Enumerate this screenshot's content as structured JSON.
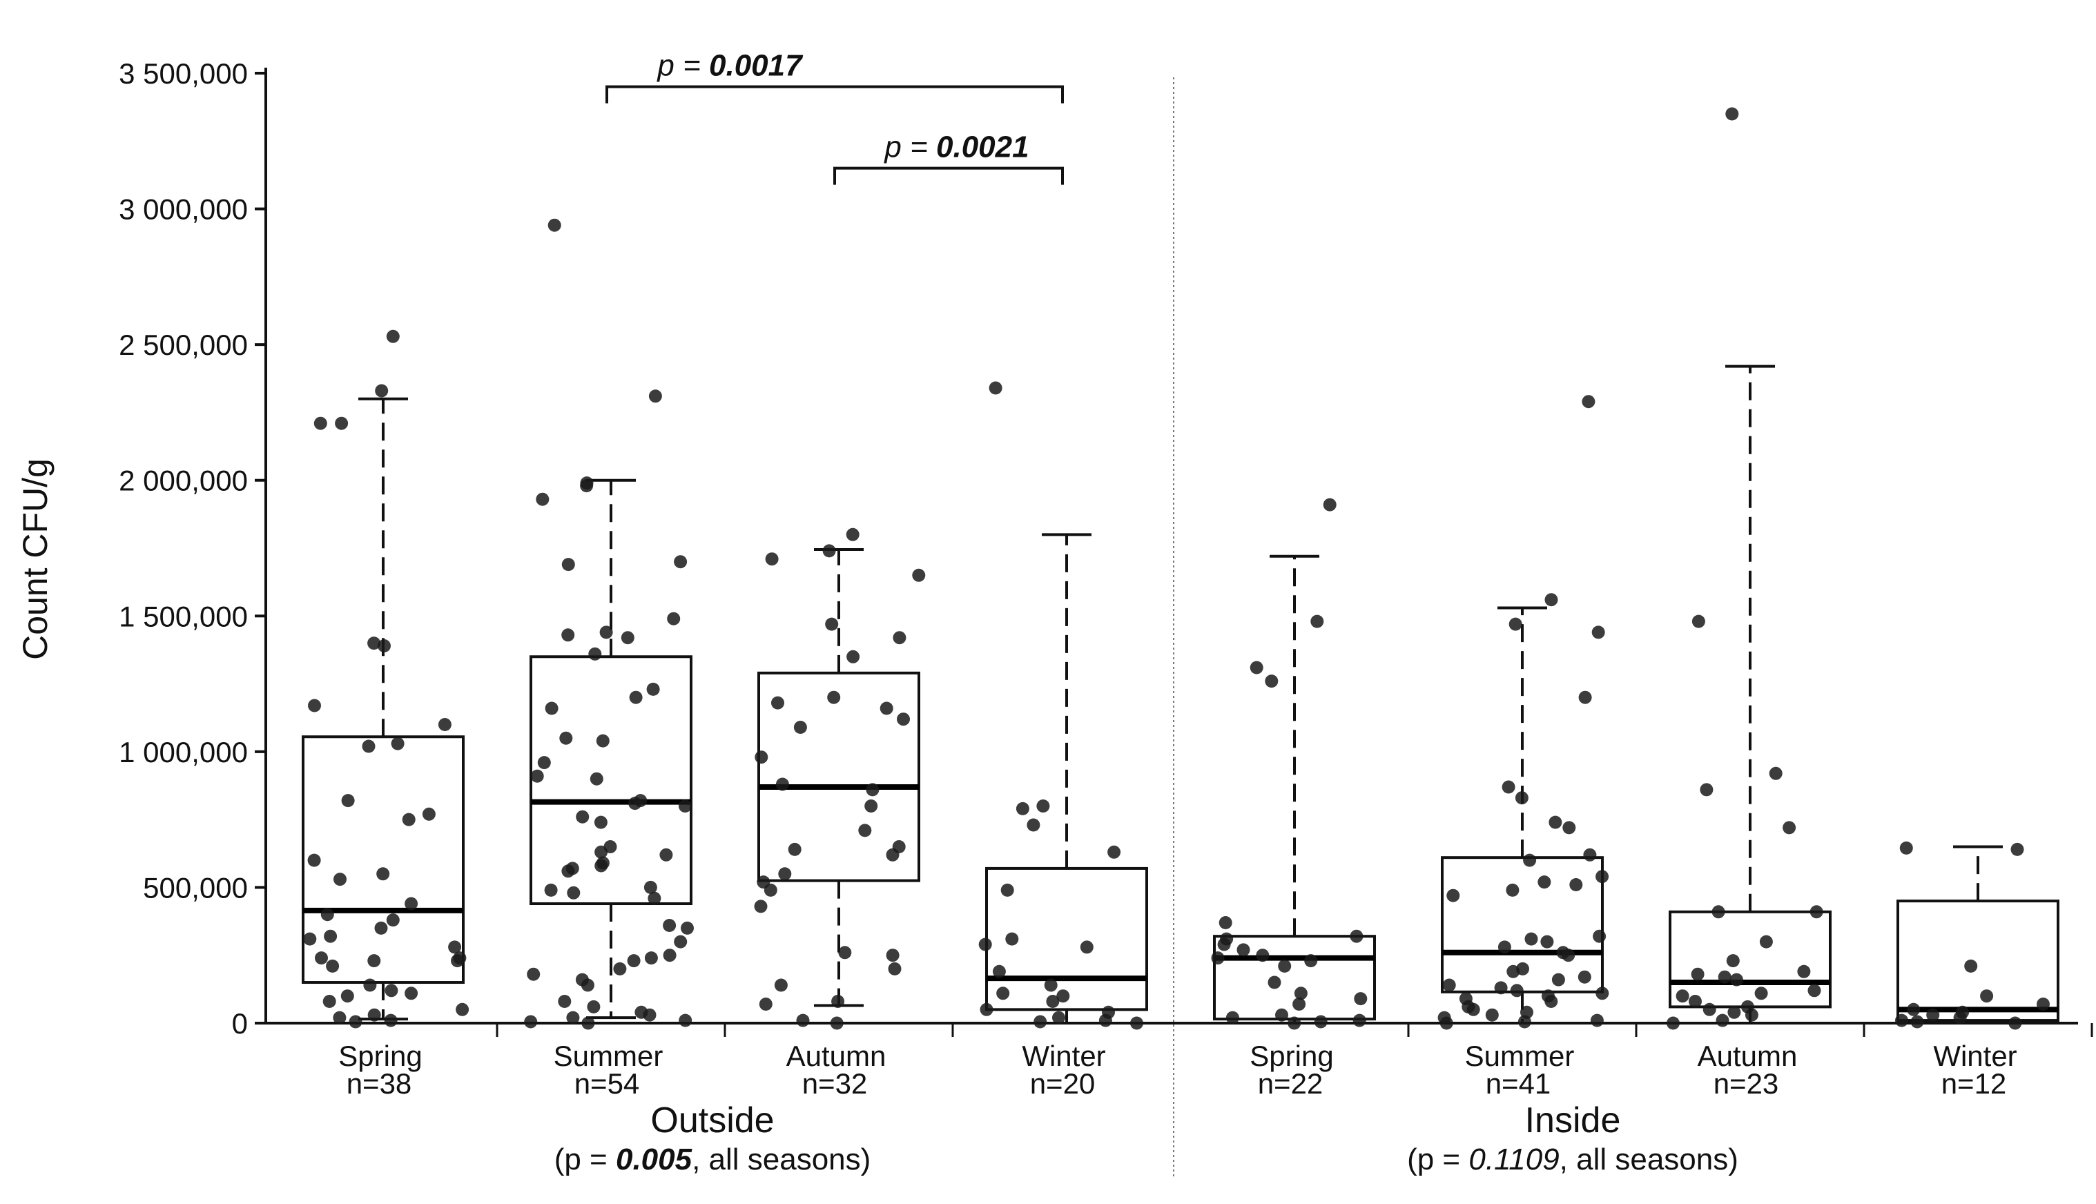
{
  "chart_data": {
    "type": "box",
    "ylabel": "Count CFU/g",
    "ylim": [
      0,
      3500000
    ],
    "yticks": [
      {
        "value": 0,
        "label": "0"
      },
      {
        "value": 500000,
        "label": "500,000"
      },
      {
        "value": 1000000,
        "label": "1 000,000"
      },
      {
        "value": 1500000,
        "label": "1 500,000"
      },
      {
        "value": 2000000,
        "label": "2 000,000"
      },
      {
        "value": 2500000,
        "label": "2 500,000"
      },
      {
        "value": 3000000,
        "label": "3 000,000"
      },
      {
        "value": 3500000,
        "label": "3 500,000"
      }
    ],
    "groups": [
      {
        "name": "Outside",
        "p_prefix": "(p = ",
        "p_value": "0.005",
        "p_suffix": ", all seasons)",
        "series": [
          {
            "season": "Spring",
            "n_label": "n=38",
            "q1": 150000,
            "median": 415000,
            "q3": 1055000,
            "whisker_low": 15000,
            "whisker_high": 2300000,
            "points": [
              2330000,
              2530000,
              2210000,
              2210000,
              1400000,
              1390000,
              1170000,
              1100000,
              1030000,
              1020000,
              820000,
              770000,
              750000,
              600000,
              550000,
              530000,
              440000,
              400000,
              380000,
              350000,
              320000,
              310000,
              280000,
              240000,
              240000,
              230000,
              230000,
              210000,
              140000,
              120000,
              110000,
              100000,
              80000,
              50000,
              30000,
              20000,
              10000,
              5000
            ]
          },
          {
            "season": "Summer",
            "n_label": "n=54",
            "q1": 440000,
            "median": 815000,
            "q3": 1350000,
            "whisker_low": 20000,
            "whisker_high": 2000000,
            "points": [
              2940000,
              2310000,
              1990000,
              1980000,
              1930000,
              1700000,
              1690000,
              1490000,
              1440000,
              1430000,
              1420000,
              1360000,
              1230000,
              1200000,
              1160000,
              1050000,
              1040000,
              960000,
              910000,
              900000,
              820000,
              810000,
              800000,
              760000,
              740000,
              650000,
              630000,
              620000,
              590000,
              580000,
              570000,
              560000,
              500000,
              490000,
              480000,
              460000,
              360000,
              350000,
              300000,
              250000,
              240000,
              230000,
              200000,
              180000,
              160000,
              140000,
              80000,
              60000,
              40000,
              30000,
              20000,
              10000,
              5000,
              0
            ]
          },
          {
            "season": "Autumn",
            "n_label": "n=32",
            "q1": 525000,
            "median": 870000,
            "q3": 1290000,
            "whisker_low": 65000,
            "whisker_high": 1745000,
            "points": [
              1800000,
              1740000,
              1710000,
              1650000,
              1470000,
              1420000,
              1350000,
              1200000,
              1180000,
              1160000,
              1120000,
              1090000,
              980000,
              880000,
              860000,
              800000,
              710000,
              650000,
              640000,
              620000,
              550000,
              520000,
              490000,
              430000,
              260000,
              250000,
              200000,
              140000,
              80000,
              70000,
              10000,
              0
            ]
          },
          {
            "season": "Winter",
            "n_label": "n=20",
            "q1": 50000,
            "median": 165000,
            "q3": 570000,
            "whisker_low": 0,
            "whisker_high": 1800000,
            "points": [
              2340000,
              800000,
              790000,
              730000,
              630000,
              490000,
              310000,
              290000,
              280000,
              190000,
              140000,
              110000,
              100000,
              80000,
              50000,
              40000,
              20000,
              10000,
              5000,
              0
            ]
          }
        ]
      },
      {
        "name": "Inside",
        "p_prefix": "(p = ",
        "p_value": "0.1109",
        "p_suffix": ", all seasons)",
        "series": [
          {
            "season": "Spring",
            "n_label": "n=22",
            "q1": 15000,
            "median": 240000,
            "q3": 320000,
            "whisker_low": 0,
            "whisker_high": 1720000,
            "points": [
              1910000,
              1480000,
              1310000,
              1260000,
              370000,
              320000,
              310000,
              290000,
              270000,
              250000,
              240000,
              230000,
              210000,
              150000,
              110000,
              90000,
              70000,
              30000,
              20000,
              10000,
              5000,
              0
            ]
          },
          {
            "season": "Summer",
            "n_label": "n=41",
            "q1": 115000,
            "median": 260000,
            "q3": 610000,
            "whisker_low": 0,
            "whisker_high": 1530000,
            "points": [
              2290000,
              1560000,
              1470000,
              1440000,
              1200000,
              870000,
              830000,
              740000,
              720000,
              620000,
              600000,
              540000,
              520000,
              510000,
              490000,
              470000,
              320000,
              310000,
              300000,
              280000,
              260000,
              250000,
              200000,
              190000,
              170000,
              160000,
              140000,
              130000,
              120000,
              110000,
              100000,
              90000,
              80000,
              60000,
              50000,
              40000,
              30000,
              20000,
              10000,
              5000,
              0
            ]
          },
          {
            "season": "Autumn",
            "n_label": "n=23",
            "q1": 60000,
            "median": 150000,
            "q3": 410000,
            "whisker_low": 0,
            "whisker_high": 2420000,
            "points": [
              3350000,
              1480000,
              920000,
              860000,
              720000,
              410000,
              410000,
              300000,
              230000,
              190000,
              180000,
              170000,
              160000,
              120000,
              110000,
              100000,
              80000,
              60000,
              50000,
              40000,
              30000,
              10000,
              0
            ]
          },
          {
            "season": "Winter",
            "n_label": "n=12",
            "q1": 10000,
            "median": 50000,
            "q3": 450000,
            "whisker_low": 0,
            "whisker_high": 650000,
            "points": [
              645000,
              640000,
              210000,
              100000,
              70000,
              50000,
              40000,
              30000,
              20000,
              10000,
              5000,
              0
            ]
          }
        ]
      }
    ],
    "comparisons": [
      {
        "from": [
          0,
          1
        ],
        "to": [
          0,
          3
        ],
        "label_prefix": "p = ",
        "label_value": "0.0017",
        "y": 3450000
      },
      {
        "from": [
          0,
          2
        ],
        "to": [
          0,
          3
        ],
        "label_prefix": "p = ",
        "label_value": "0.0021",
        "y": 3150000
      }
    ]
  }
}
